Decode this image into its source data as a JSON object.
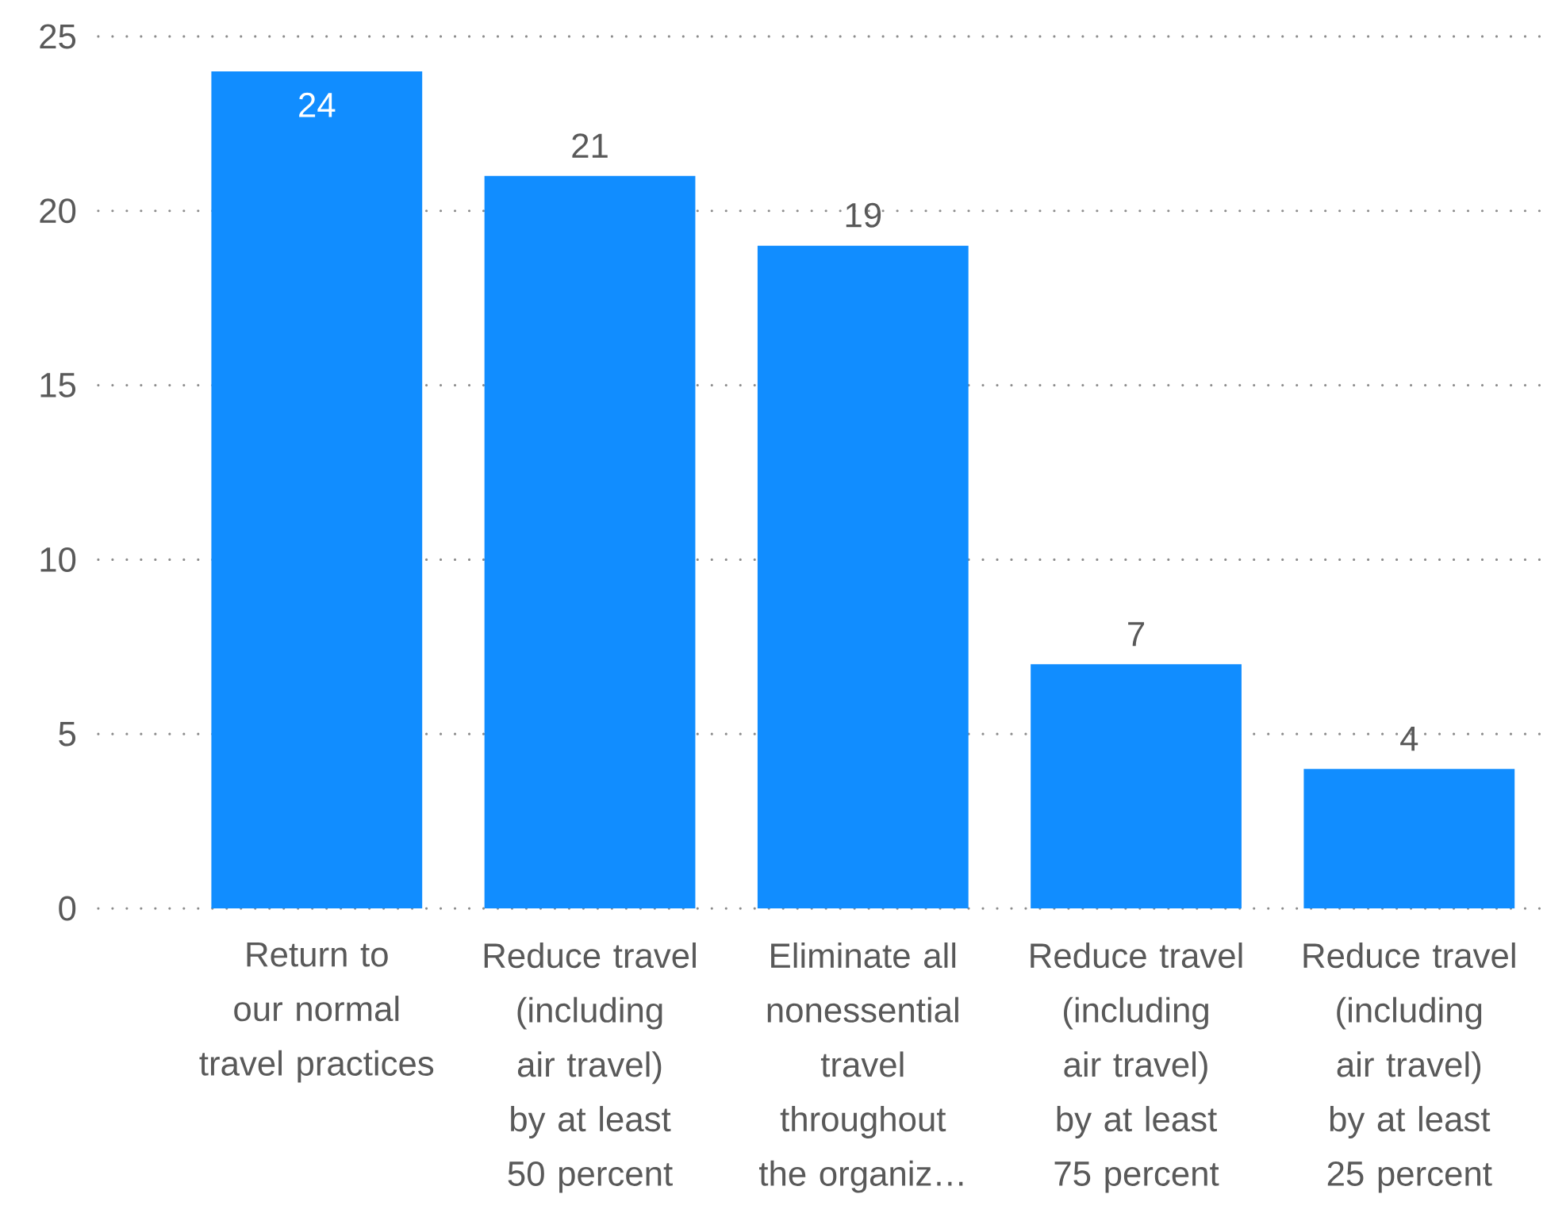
{
  "chart_data": {
    "type": "bar",
    "categories": [
      "Return to our normal travel practices",
      "Reduce travel (including air travel) by at least 50 percent",
      "Eliminate all nonessential travel throughout the organiz…",
      "Reduce travel (including air travel) by at least 75 percent",
      "Reduce travel (including air travel) by at least 25 percent"
    ],
    "values": [
      24,
      21,
      19,
      7,
      4
    ],
    "color": "#118dff",
    "ylim": [
      0,
      25
    ],
    "yticks": [
      0,
      5,
      10,
      15,
      20,
      25
    ],
    "grid": "y",
    "data_labels": true
  }
}
